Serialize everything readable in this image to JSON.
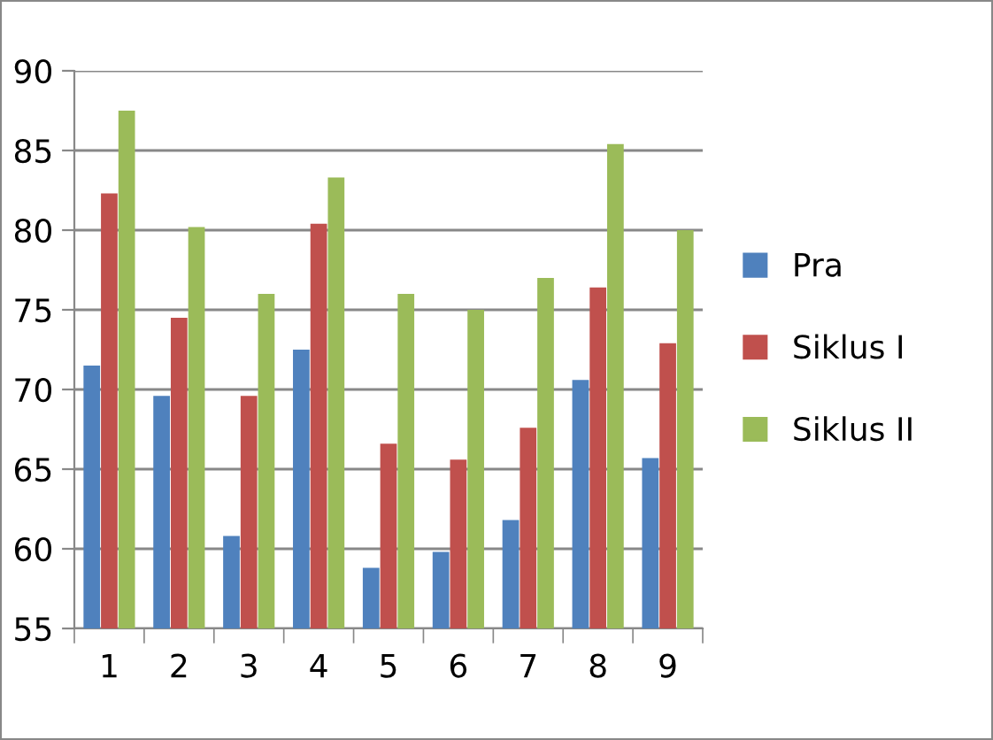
{
  "chart_data": {
    "type": "bar",
    "categories": [
      "1",
      "2",
      "3",
      "4",
      "5",
      "6",
      "7",
      "8",
      "9"
    ],
    "series": [
      {
        "name": "Pra",
        "color": "#4f81bd",
        "values": [
          71.5,
          69.6,
          60.8,
          72.5,
          58.8,
          59.8,
          61.8,
          70.6,
          65.7
        ]
      },
      {
        "name": "Siklus I",
        "color": "#c0504d",
        "values": [
          82.3,
          74.5,
          69.6,
          80.4,
          66.6,
          65.6,
          67.6,
          76.4,
          72.9
        ]
      },
      {
        "name": "Siklus II",
        "color": "#9bbb59",
        "values": [
          87.5,
          80.2,
          76.0,
          83.3,
          76.0,
          75.0,
          77.0,
          85.4,
          80.0
        ]
      }
    ],
    "ylim": [
      55,
      90
    ],
    "yticks": [
      55,
      60,
      65,
      70,
      75,
      80,
      85,
      90
    ],
    "grid": "y",
    "legend": "right"
  }
}
